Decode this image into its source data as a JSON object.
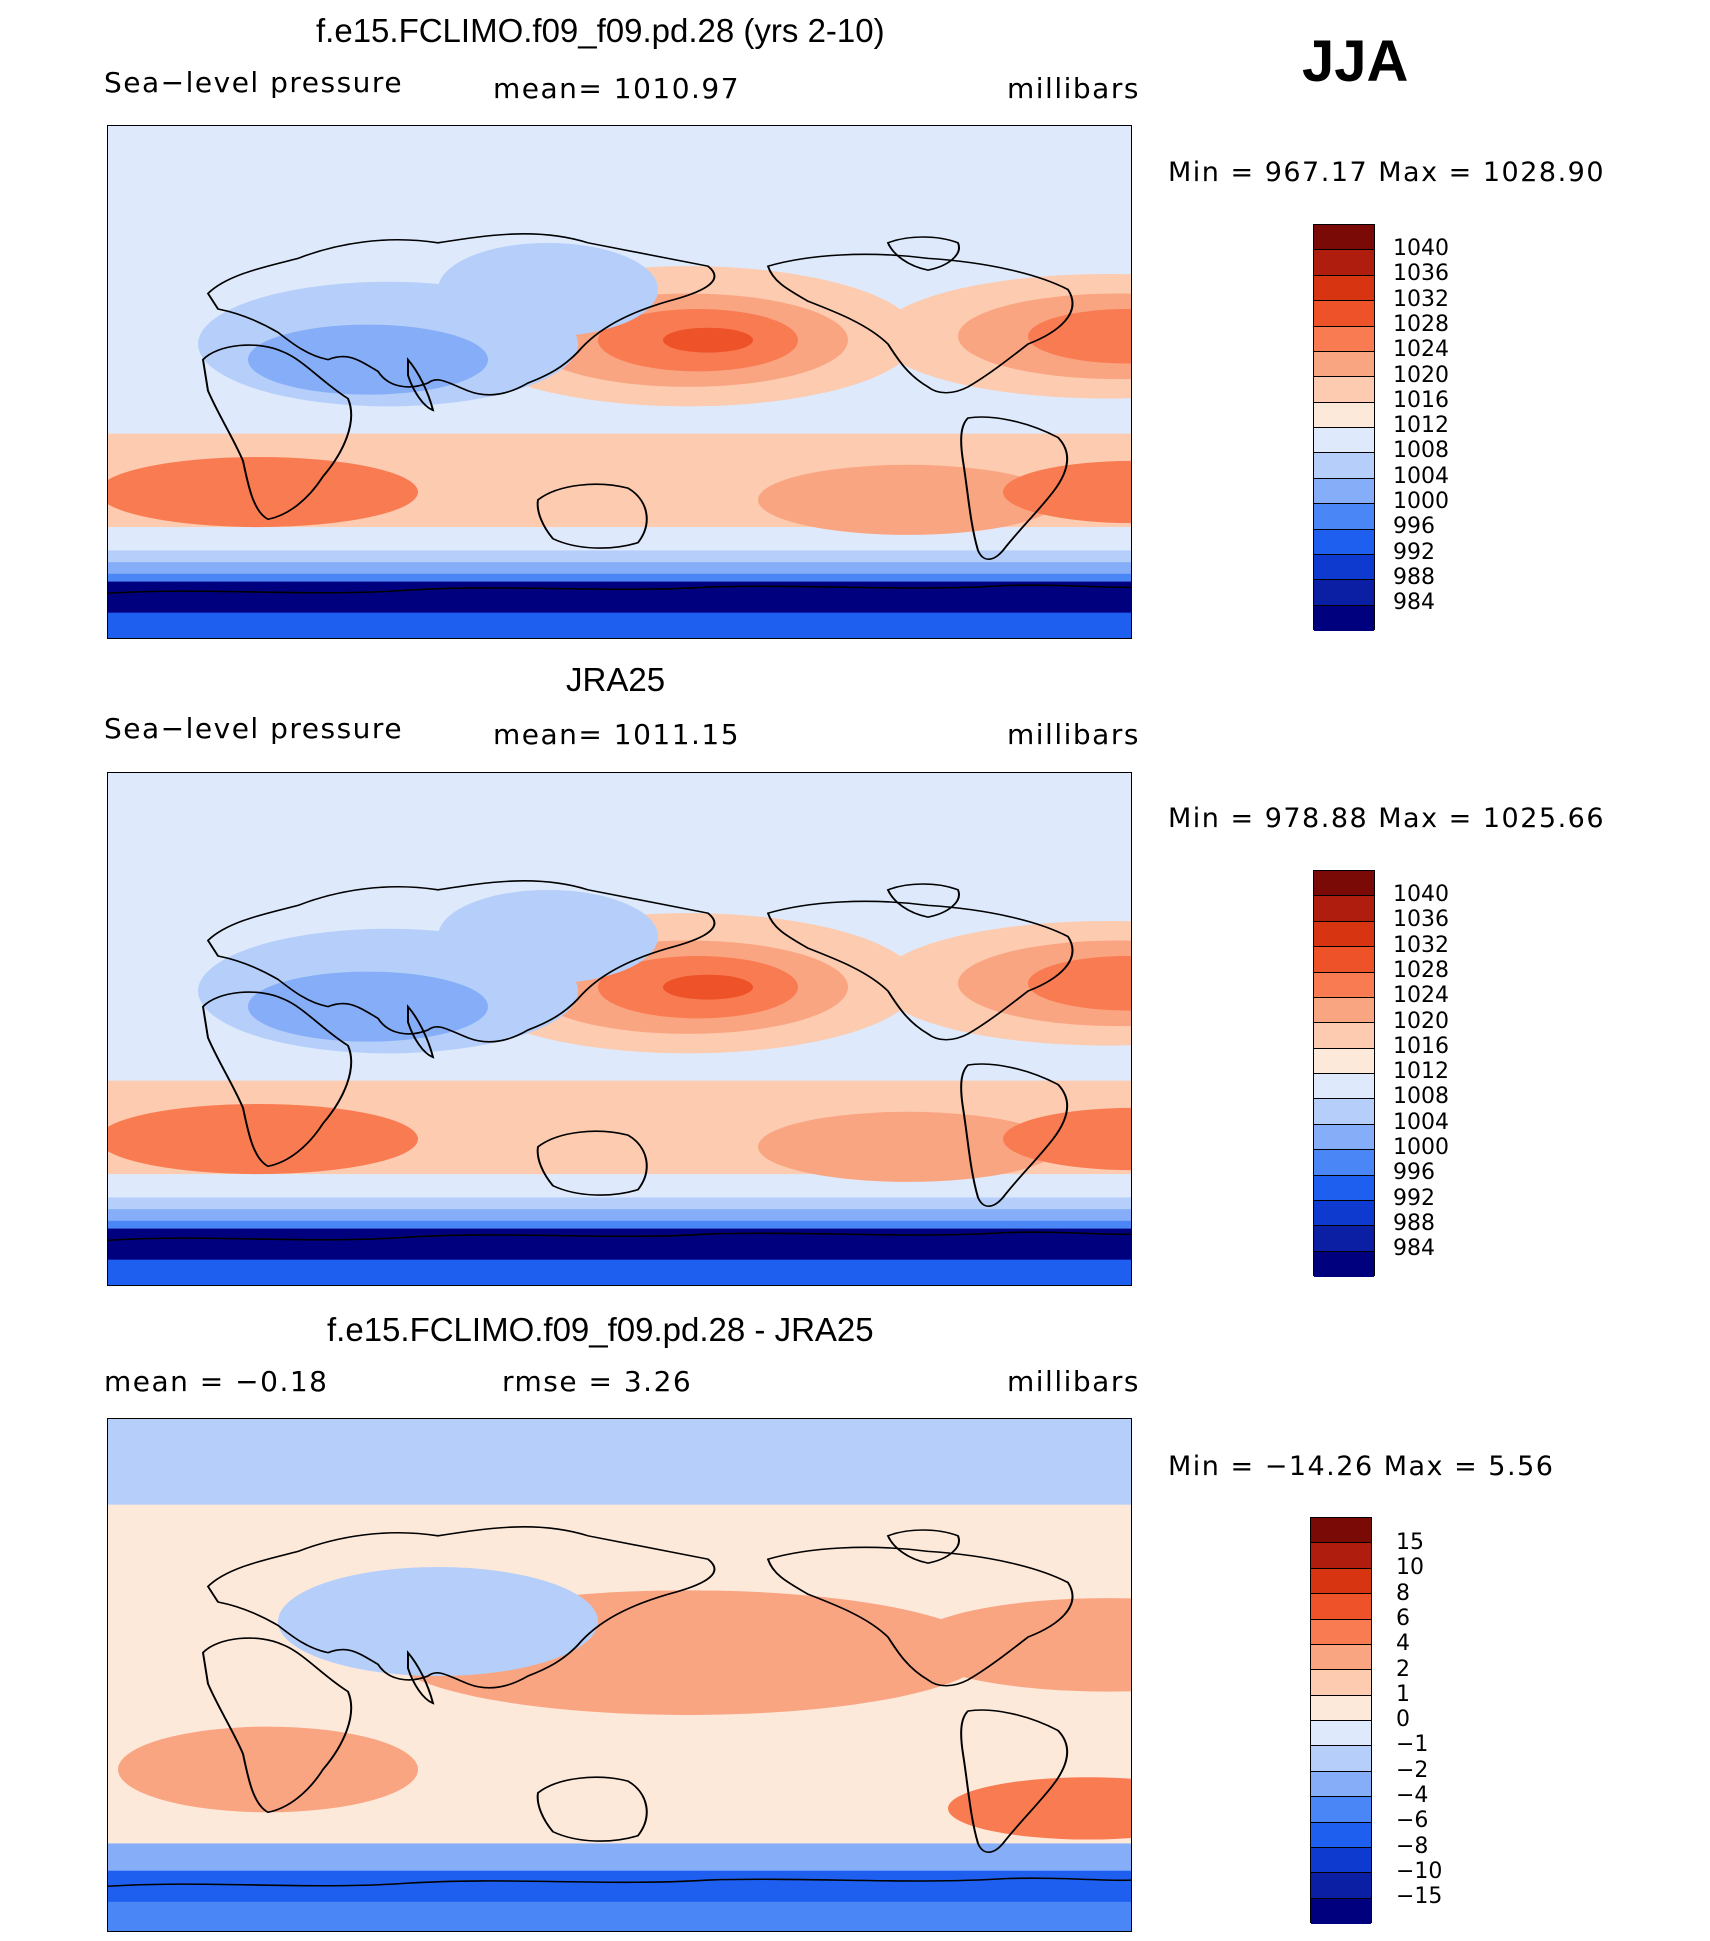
{
  "season": "JJA",
  "colors": {
    "abs_scale": [
      "#00007f",
      "#0a1fa3",
      "#0f3ad0",
      "#1f5ff0",
      "#4a86f5",
      "#86aef8",
      "#b6cffa",
      "#deeafc",
      "#fde9da",
      "#fccbb0",
      "#faa582",
      "#f97b52",
      "#ee5228",
      "#d73412",
      "#ae1d0d",
      "#7a0a05"
    ],
    "diff_scale": [
      "#00007f",
      "#0a1fa3",
      "#0f3ad0",
      "#1f5ff0",
      "#4a86f5",
      "#86aef8",
      "#b6cffa",
      "#deeafc",
      "#fde9da",
      "#fccbb0",
      "#faa582",
      "#f97b52",
      "#ee5228",
      "#d73412",
      "#ae1d0d",
      "#7a0a05"
    ],
    "land_outline": "#000000"
  },
  "panels": [
    {
      "title": "f.e15.FCLIMO.f09_f09.pd.28 (yrs 2-10)",
      "left": "Sea−level  pressure",
      "center": "mean=  1010.97",
      "right": "millibars",
      "minmax": "Min  =  967.17  Max  =  1028.90",
      "legend": [
        "1040",
        "1036",
        "1032",
        "1028",
        "1024",
        "1020",
        "1016",
        "1012",
        "1008",
        "1004",
        "1000",
        "996",
        "992",
        "988",
        "984"
      ]
    },
    {
      "title": "JRA25",
      "left": "Sea−level  pressure",
      "center": "mean=  1011.15",
      "right": "millibars",
      "minmax": "Min  =  978.88  Max  =  1025.66",
      "legend": [
        "1040",
        "1036",
        "1032",
        "1028",
        "1024",
        "1020",
        "1016",
        "1012",
        "1008",
        "1004",
        "1000",
        "996",
        "992",
        "988",
        "984"
      ]
    },
    {
      "title": "f.e15.FCLIMO.f09_f09.pd.28 - JRA25",
      "left": "mean  =    −0.18",
      "center": "rmse  =     3.26",
      "right": "millibars",
      "minmax": "Min  =  −14.26  Max  =      5.56",
      "legend": [
        "15",
        "10",
        "8",
        "6",
        "4",
        "2",
        "1",
        "0",
        "−1",
        "−2",
        "−4",
        "−6",
        "−8",
        "−10",
        "−15"
      ]
    }
  ]
}
